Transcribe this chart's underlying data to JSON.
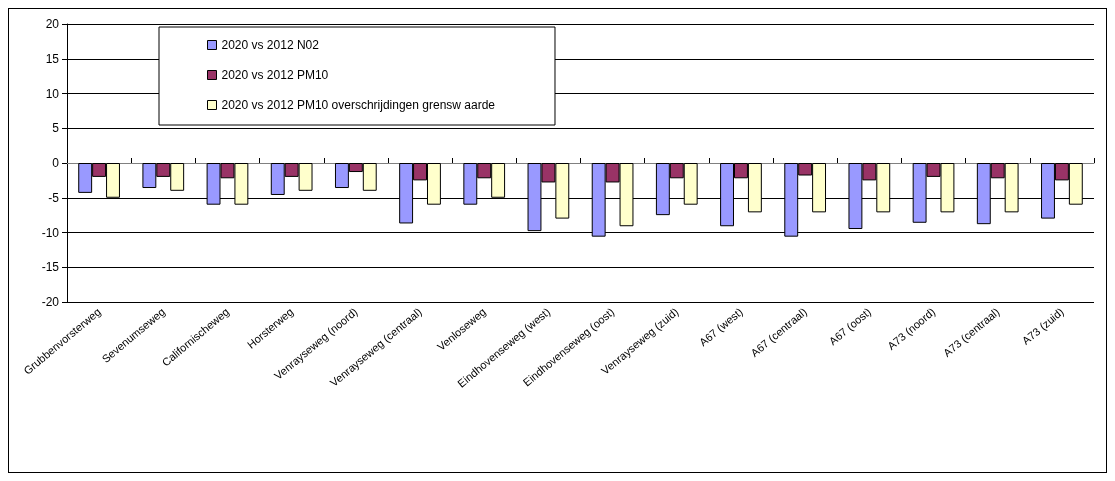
{
  "chart_data": {
    "type": "bar",
    "categories": [
      "Grubbenvorsterweg",
      "Sevenumseweg",
      "Californischeweg",
      "Horsterweg",
      "Venrayseweg (noord)",
      "Venrayseweg (centraal)",
      "Venloseweg",
      "Eindhovenseweg (west)",
      "Eindhovenseweg (oost)",
      "Venrayseweg (zuid)",
      "A67 (west)",
      "A67 (centraal)",
      "A67 (oost)",
      "A73 (noord)",
      "A73 (centraal)",
      "A73 (zuid)"
    ],
    "series": [
      {
        "name": "2020 vs 2012 N02",
        "color": "#9999ff",
        "values": [
          -4.3,
          -3.6,
          -6,
          -4.6,
          -3.6,
          -8.7,
          -6,
          -9.8,
          -10.6,
          -7.5,
          -9.1,
          -10.6,
          -9.5,
          -8.6,
          -8.8,
          -8
        ]
      },
      {
        "name": "2020 vs 2012 PM10",
        "color": "#993366",
        "values": [
          -2,
          -2,
          -2.2,
          -2,
          -1.3,
          -2.5,
          -2.2,
          -2.8,
          -2.8,
          -2.2,
          -2.2,
          -1.8,
          -2.5,
          -2,
          -2.2,
          -2.5
        ]
      },
      {
        "name": "2020 vs 2012 PM10 overschrijdingen grensw aarde",
        "color": "#ffffcc",
        "values": [
          -5,
          -4,
          -6,
          -4,
          -4,
          -6,
          -5,
          -8,
          -9.1,
          -6,
          -7.1,
          -7.1,
          -7.1,
          -7.1,
          -7.1,
          -6
        ]
      }
    ],
    "ylim": [
      -20,
      20
    ],
    "yticks": [
      -20,
      -15,
      -10,
      -5,
      0,
      5,
      10,
      15,
      20
    ],
    "grid": "y",
    "legend": "top left"
  }
}
